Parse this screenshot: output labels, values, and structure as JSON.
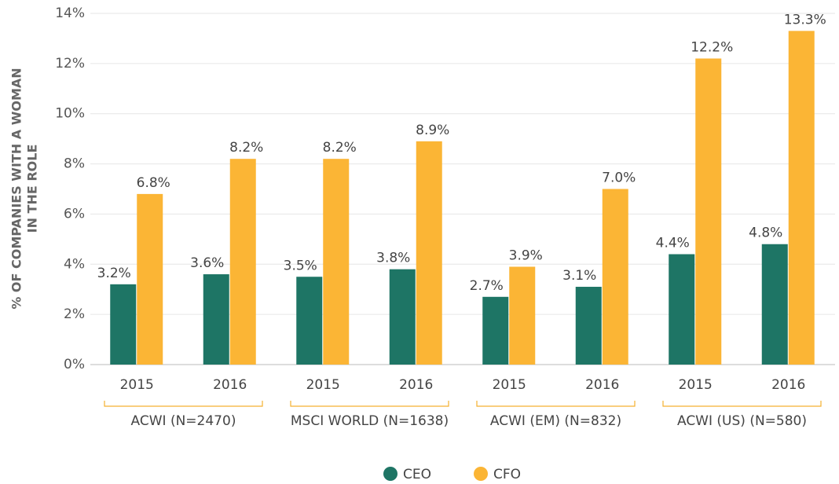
{
  "chart_data": {
    "type": "grouped-bar",
    "ylabel": [
      "% OF COMPANIES WITH A WOMAN",
      "IN THE ROLE"
    ],
    "categories": [
      "2015",
      "2016",
      "2015",
      "2016",
      "2015",
      "2016",
      "2015",
      "2016"
    ],
    "groups": [
      "ACWI (N=2470)",
      "MSCI WORLD (N=1638)",
      "ACWI (EM) (N=832)",
      "ACWI (US) (N=580)"
    ],
    "series": [
      {
        "name": "CEO",
        "color": "#1e7565",
        "label_color": "#2a8a78",
        "values": [
          3.2,
          3.6,
          3.5,
          3.8,
          2.7,
          3.1,
          4.4,
          4.8
        ],
        "value_labels": [
          "3.2%",
          "3.6%",
          "3.5%",
          "3.8%",
          "2.7%",
          "3.1%",
          "4.4%",
          "4.8%"
        ]
      },
      {
        "name": "CFO",
        "color": "#fbb535",
        "label_color": "#444444",
        "values": [
          6.8,
          8.2,
          8.2,
          8.9,
          3.9,
          7.0,
          12.2,
          13.3
        ],
        "value_labels": [
          "6.8%",
          "8.2%",
          "8.2%",
          "8.9%",
          "3.9%",
          "7.0%",
          "12.2%",
          "13.3%"
        ]
      }
    ],
    "ylim": [
      0,
      14
    ],
    "yticks": [
      {
        "value": 0,
        "label": "0%"
      },
      {
        "value": 2,
        "label": "2%"
      },
      {
        "value": 4,
        "label": "4%"
      },
      {
        "value": 6,
        "label": "6%"
      },
      {
        "value": 8,
        "label": "8%"
      },
      {
        "value": 10,
        "label": "10%"
      },
      {
        "value": 12,
        "label": "12%"
      },
      {
        "value": 14,
        "label": "14%"
      }
    ],
    "grid": true,
    "legend": "bottom"
  }
}
